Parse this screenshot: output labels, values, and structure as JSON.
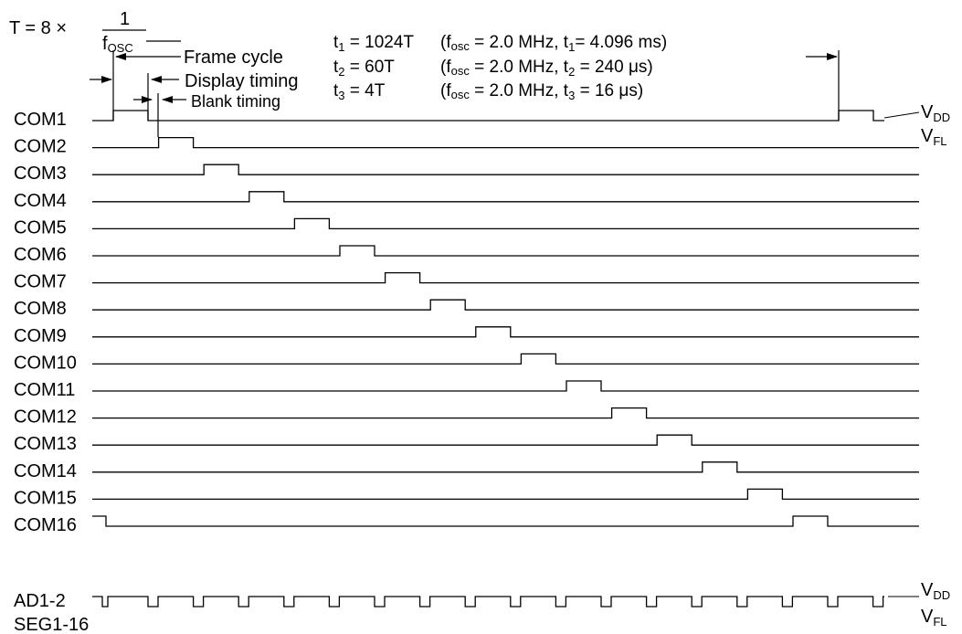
{
  "formula": {
    "lhs": "T = 8 ×",
    "numerator": "1",
    "denominator_main": "f",
    "denominator_sub": "OSC"
  },
  "labels": {
    "frame_cycle": "Frame cycle",
    "display_timing": "Display timing",
    "blank_timing": "Blank timing"
  },
  "parameters": [
    {
      "sym": "t",
      "sub": "1",
      "eq": " = 1024T",
      "p_open": "(f",
      "p_sub": "osc",
      "p_mid": " = 2.0 MHz, t",
      "p_sub2": "1",
      "p_end": "= 4.096 ms)"
    },
    {
      "sym": "t",
      "sub": "2",
      "eq": " = 60T",
      "p_open": "(f",
      "p_sub": "osc",
      "p_mid": " = 2.0 MHz, t",
      "p_sub2": "2",
      "p_end": " = 240 μs)"
    },
    {
      "sym": "t",
      "sub": "3",
      "eq": " = 4T",
      "p_open": "(f",
      "p_sub": "osc",
      "p_mid": " = 2.0 MHz, t",
      "p_sub2": "3",
      "p_end": " = 16 μs)"
    }
  ],
  "levels": {
    "vdd_main": "V",
    "vdd_sub": "DD",
    "vfl_main": "V",
    "vfl_sub": "FL"
  },
  "com_signals": [
    "COM1",
    "COM2",
    "COM3",
    "COM4",
    "COM5",
    "COM6",
    "COM7",
    "COM8",
    "COM9",
    "COM10",
    "COM11",
    "COM12",
    "COM13",
    "COM14",
    "COM15",
    "COM16"
  ],
  "seg_signals": {
    "line1": "AD1-2",
    "line2": "SEG1-16"
  },
  "colors": {
    "ink": "#000000",
    "background": "#ffffff"
  }
}
